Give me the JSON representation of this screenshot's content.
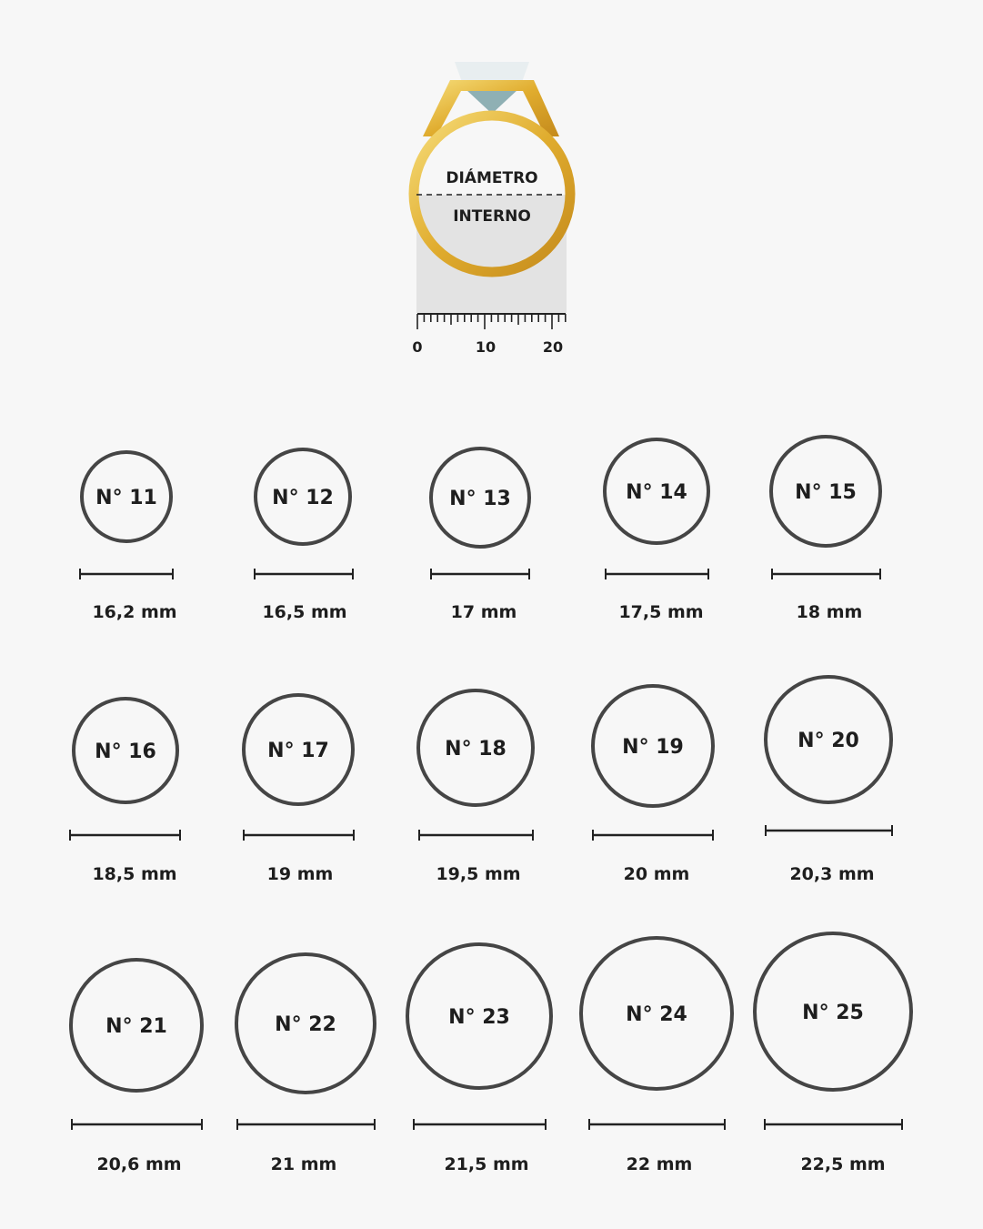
{
  "header": {
    "label_top": "DIÁMETRO",
    "label_bottom": "INTERNO",
    "ruler_ticks": [
      "0",
      "10",
      "20"
    ],
    "ring_color": "#e2b23a",
    "gem_color": "#b9d3d6"
  },
  "colors": {
    "circle_stroke": "#454545",
    "text": "#1e1e1e",
    "background": "#f7f7f7"
  },
  "sizes": [
    {
      "label": "N° 11",
      "diameter": "16,2 mm"
    },
    {
      "label": "N° 12",
      "diameter": "16,5 mm"
    },
    {
      "label": "N° 13",
      "diameter": "17 mm"
    },
    {
      "label": "N° 14",
      "diameter": "17,5 mm"
    },
    {
      "label": "N° 15",
      "diameter": "18 mm"
    },
    {
      "label": "N° 16",
      "diameter": "18,5 mm"
    },
    {
      "label": "N° 17",
      "diameter": "19 mm"
    },
    {
      "label": "N° 18",
      "diameter": "19,5 mm"
    },
    {
      "label": "N° 19",
      "diameter": "20 mm"
    },
    {
      "label": "N° 20",
      "diameter": "20,3 mm"
    },
    {
      "label": "N° 21",
      "diameter": "20,6 mm"
    },
    {
      "label": "N° 22",
      "diameter": "21 mm"
    },
    {
      "label": "N° 23",
      "diameter": "21,5 mm"
    },
    {
      "label": "N° 24",
      "diameter": "22 mm"
    },
    {
      "label": "N° 25",
      "diameter": "22,5 mm"
    }
  ]
}
